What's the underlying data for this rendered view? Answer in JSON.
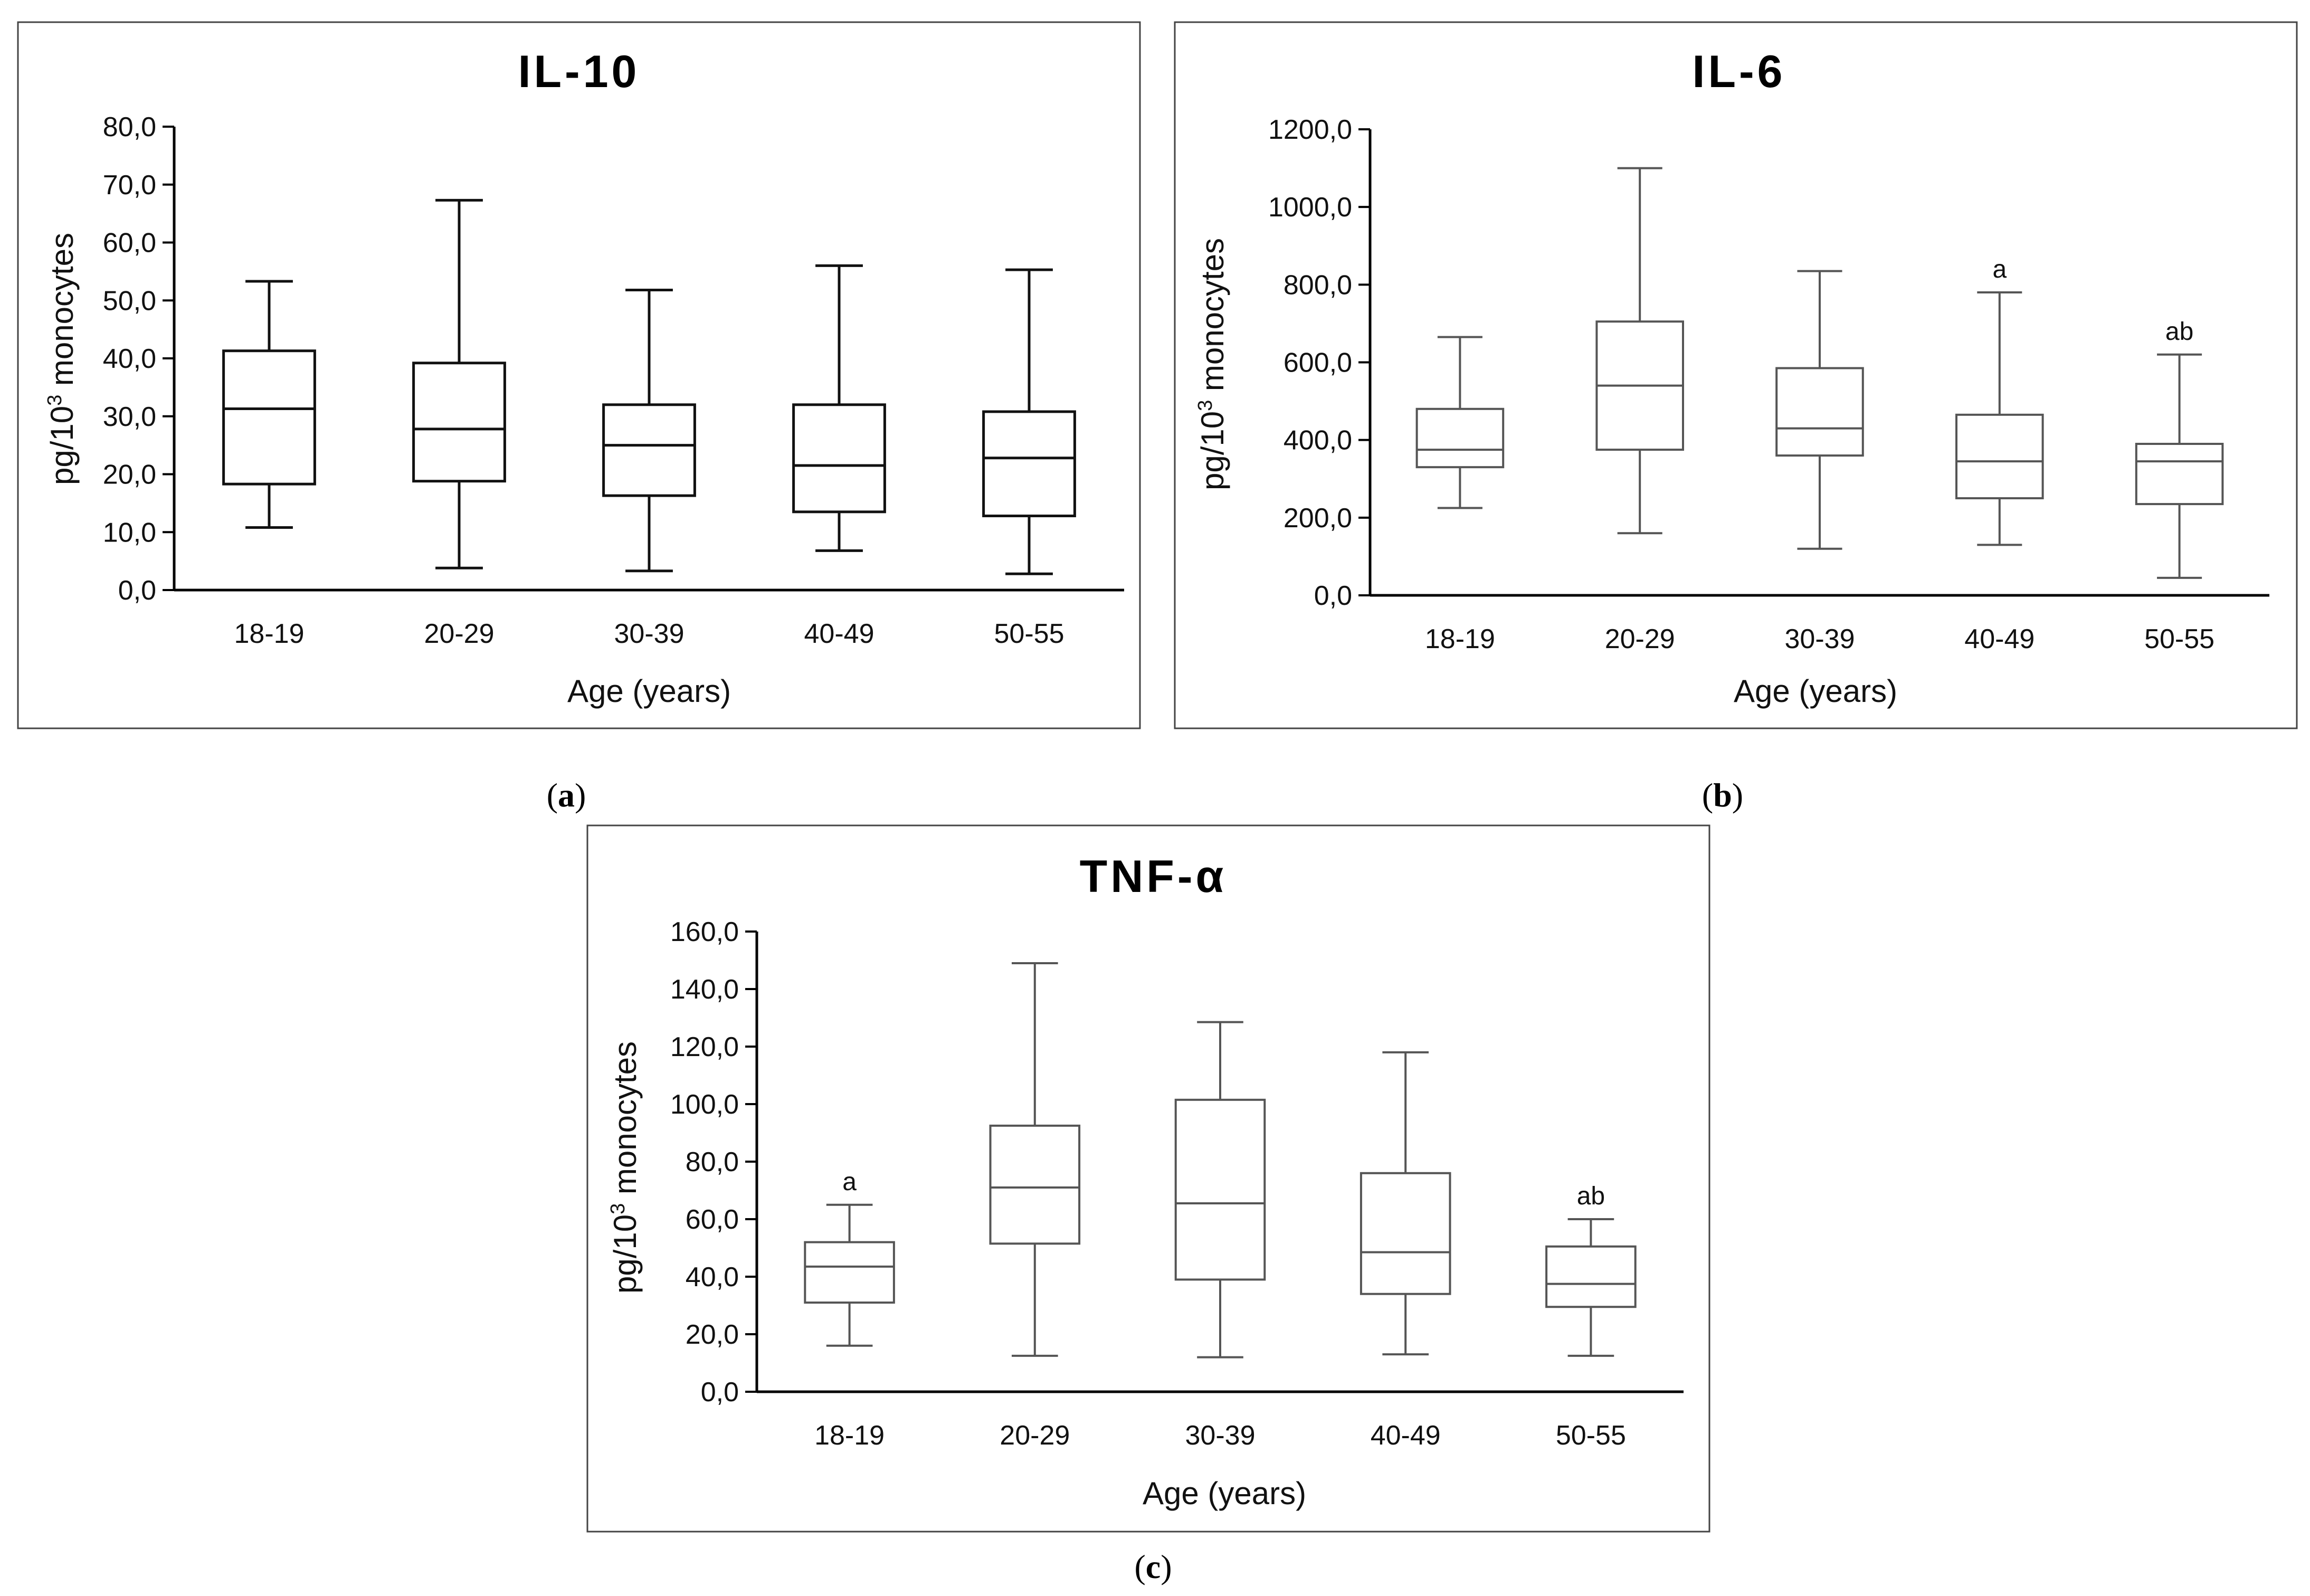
{
  "panels": [
    {
      "tag_open": "(",
      "tag_letter": "a",
      "tag_close": ")"
    },
    {
      "tag_open": "(",
      "tag_letter": "b",
      "tag_close": ")"
    },
    {
      "tag_open": "(",
      "tag_letter": "c",
      "tag_close": ")"
    }
  ],
  "chart_data": [
    {
      "type": "boxplot",
      "title": "IL-10",
      "xlabel": "Age (years)",
      "ylabel_main": "pg/10",
      "ylabel_sup": "3",
      "ylabel_rest": " monocytes",
      "categories": [
        "18-19",
        "20-29",
        "30-39",
        "40-49",
        "50-55"
      ],
      "ylim": [
        0,
        80
      ],
      "yticks": [
        0,
        10,
        20,
        30,
        40,
        50,
        60,
        70,
        80
      ],
      "ytick_labels": [
        "0,0",
        "10,0",
        "20,0",
        "30,0",
        "40,0",
        "50,0",
        "60,0",
        "70,0",
        "80,0"
      ],
      "boxes": [
        {
          "min": 10.8,
          "q1": 18.3,
          "median": 31.3,
          "q3": 41.3,
          "max": 53.3
        },
        {
          "min": 3.8,
          "q1": 18.8,
          "median": 27.8,
          "q3": 39.2,
          "max": 67.3
        },
        {
          "min": 3.3,
          "q1": 16.3,
          "median": 25.0,
          "q3": 32.0,
          "max": 51.8
        },
        {
          "min": 6.8,
          "q1": 13.5,
          "median": 21.5,
          "q3": 32.0,
          "max": 56.0
        },
        {
          "min": 2.8,
          "q1": 12.8,
          "median": 22.8,
          "q3": 30.8,
          "max": 55.3
        }
      ],
      "annotations": [
        "",
        "",
        "",
        "",
        ""
      ],
      "grid": false
    },
    {
      "type": "boxplot",
      "title": "IL-6",
      "xlabel": "Age (years)",
      "ylabel_main": "pg/10",
      "ylabel_sup": "3",
      "ylabel_rest": " monocytes",
      "categories": [
        "18-19",
        "20-29",
        "30-39",
        "40-49",
        "50-55"
      ],
      "ylim": [
        0,
        1200
      ],
      "yticks": [
        0,
        200,
        400,
        600,
        800,
        1000,
        1200
      ],
      "ytick_labels": [
        "0,0",
        "200,0",
        "400,0",
        "600,0",
        "800,0",
        "1000,0",
        "1200,0"
      ],
      "boxes": [
        {
          "min": 225,
          "q1": 330,
          "median": 375,
          "q3": 480,
          "max": 665
        },
        {
          "min": 160,
          "q1": 375,
          "median": 540,
          "q3": 705,
          "max": 1100
        },
        {
          "min": 120,
          "q1": 360,
          "median": 430,
          "q3": 585,
          "max": 835
        },
        {
          "min": 130,
          "q1": 250,
          "median": 345,
          "q3": 465,
          "max": 780
        },
        {
          "min": 45,
          "q1": 235,
          "median": 345,
          "q3": 390,
          "max": 620
        }
      ],
      "annotations": [
        "",
        "",
        "",
        "a",
        "ab"
      ],
      "grid": false
    },
    {
      "type": "boxplot",
      "title": "TNF-α",
      "xlabel": "Age (years)",
      "ylabel_main": "pg/10",
      "ylabel_sup": "3",
      "ylabel_rest": " monocytes",
      "categories": [
        "18-19",
        "20-29",
        "30-39",
        "40-49",
        "50-55"
      ],
      "ylim": [
        0,
        160
      ],
      "yticks": [
        0,
        20,
        40,
        60,
        80,
        100,
        120,
        140,
        160
      ],
      "ytick_labels": [
        "0,0",
        "20,0",
        "40,0",
        "60,0",
        "80,0",
        "100,0",
        "120,0",
        "140,0",
        "160,0"
      ],
      "boxes": [
        {
          "min": 16,
          "q1": 31,
          "median": 43.5,
          "q3": 52,
          "max": 65
        },
        {
          "min": 12.5,
          "q1": 51.5,
          "median": 71,
          "q3": 92.5,
          "max": 149
        },
        {
          "min": 12,
          "q1": 39,
          "median": 65.5,
          "q3": 101.5,
          "max": 128.5
        },
        {
          "min": 13,
          "q1": 34,
          "median": 48.5,
          "q3": 76,
          "max": 118
        },
        {
          "min": 12.5,
          "q1": 29.5,
          "median": 37.5,
          "q3": 50.5,
          "max": 60
        }
      ],
      "annotations": [
        "a",
        "",
        "",
        "",
        "ab"
      ],
      "grid": false
    }
  ],
  "style": {
    "panel_a_color": "#111111",
    "panel_b_color": "#555555",
    "panel_c_color": "#555555"
  }
}
